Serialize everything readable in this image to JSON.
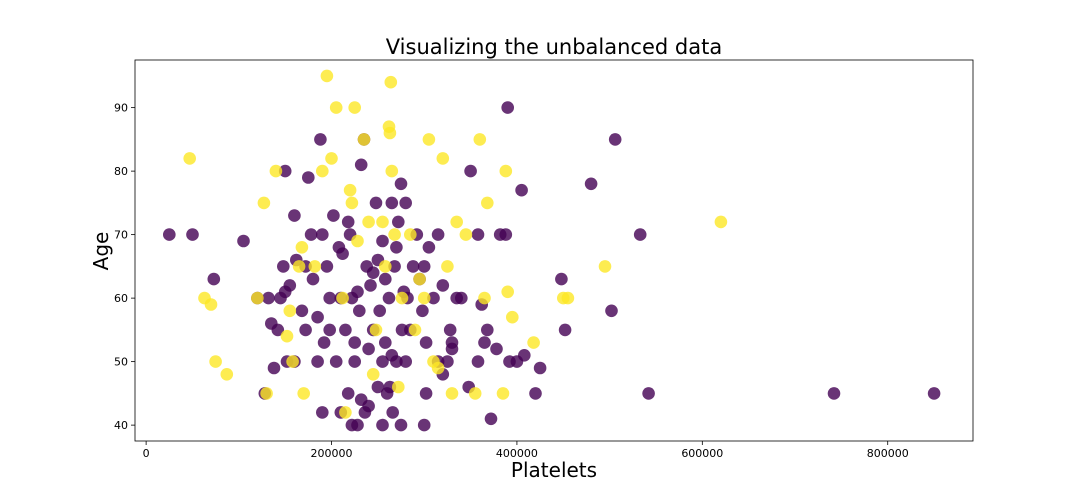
{
  "chart_data": {
    "type": "scatter",
    "title": "Visualizing the unbalanced data",
    "xlabel": "Platelets",
    "ylabel": "Age",
    "xlim": [
      -12000,
      892000
    ],
    "ylim": [
      37.5,
      97.5
    ],
    "xticks": [
      0,
      200000,
      400000,
      600000,
      800000
    ],
    "yticks": [
      40,
      50,
      60,
      70,
      80,
      90
    ],
    "grid": false,
    "legend": "none",
    "colors": {
      "class_0": "#440154",
      "class_1": "#fde725"
    },
    "series": [
      {
        "class": 0,
        "points": [
          [
            25000,
            70
          ],
          [
            50000,
            70
          ],
          [
            73000,
            63
          ],
          [
            105000,
            69
          ],
          [
            120000,
            60
          ],
          [
            128000,
            45
          ],
          [
            132000,
            60
          ],
          [
            135000,
            56
          ],
          [
            138000,
            49
          ],
          [
            142000,
            55
          ],
          [
            148000,
            65
          ],
          [
            150000,
            61
          ],
          [
            150000,
            80
          ],
          [
            152000,
            50
          ],
          [
            155000,
            62
          ],
          [
            160000,
            73
          ],
          [
            162000,
            66
          ],
          [
            168000,
            58
          ],
          [
            172000,
            65
          ],
          [
            175000,
            79
          ],
          [
            178000,
            70
          ],
          [
            180000,
            63
          ],
          [
            185000,
            57
          ],
          [
            188000,
            85
          ],
          [
            190000,
            70
          ],
          [
            192000,
            53
          ],
          [
            195000,
            65
          ],
          [
            198000,
            60
          ],
          [
            202000,
            73
          ],
          [
            208000,
            68
          ],
          [
            210000,
            60
          ],
          [
            212000,
            67
          ],
          [
            215000,
            55
          ],
          [
            218000,
            72
          ],
          [
            220000,
            70
          ],
          [
            222000,
            60
          ],
          [
            225000,
            53
          ],
          [
            228000,
            61
          ],
          [
            232000,
            81
          ],
          [
            235000,
            85
          ],
          [
            238000,
            65
          ],
          [
            242000,
            62
          ],
          [
            245000,
            64
          ],
          [
            248000,
            75
          ],
          [
            250000,
            66
          ],
          [
            252000,
            58
          ],
          [
            255000,
            69
          ],
          [
            258000,
            63
          ],
          [
            262000,
            60
          ],
          [
            265000,
            75
          ],
          [
            268000,
            65
          ],
          [
            270000,
            68
          ],
          [
            272000,
            72
          ],
          [
            275000,
            78
          ],
          [
            278000,
            61
          ],
          [
            280000,
            75
          ],
          [
            282000,
            60
          ],
          [
            285000,
            55
          ],
          [
            288000,
            65
          ],
          [
            292000,
            70
          ],
          [
            295000,
            63
          ],
          [
            298000,
            58
          ],
          [
            300000,
            65
          ],
          [
            302000,
            53
          ],
          [
            305000,
            68
          ],
          [
            310000,
            60
          ],
          [
            315000,
            70
          ],
          [
            320000,
            62
          ],
          [
            325000,
            50
          ],
          [
            328000,
            55
          ],
          [
            330000,
            52
          ],
          [
            335000,
            60
          ],
          [
            348000,
            46
          ],
          [
            350000,
            80
          ],
          [
            358000,
            70
          ],
          [
            362000,
            59
          ],
          [
            365000,
            53
          ],
          [
            368000,
            55
          ],
          [
            372000,
            41
          ],
          [
            378000,
            52
          ],
          [
            382000,
            70
          ],
          [
            388000,
            70
          ],
          [
            390000,
            90
          ],
          [
            392000,
            50
          ],
          [
            400000,
            50
          ],
          [
            405000,
            77
          ],
          [
            408000,
            51
          ],
          [
            420000,
            45
          ],
          [
            425000,
            49
          ],
          [
            448000,
            63
          ],
          [
            452000,
            55
          ],
          [
            480000,
            78
          ],
          [
            502000,
            58
          ],
          [
            506000,
            85
          ],
          [
            533000,
            70
          ],
          [
            542000,
            45
          ],
          [
            742000,
            45
          ],
          [
            850000,
            45
          ],
          [
            190000,
            42
          ],
          [
            210000,
            42
          ],
          [
            218000,
            45
          ],
          [
            222000,
            40
          ],
          [
            228000,
            40
          ],
          [
            232000,
            44
          ],
          [
            236000,
            42
          ],
          [
            240000,
            43
          ],
          [
            255000,
            40
          ],
          [
            260000,
            45
          ],
          [
            263000,
            46
          ],
          [
            266000,
            42
          ],
          [
            275000,
            40
          ],
          [
            300000,
            40
          ],
          [
            302000,
            45
          ],
          [
            315000,
            50
          ],
          [
            320000,
            48
          ],
          [
            330000,
            53
          ],
          [
            340000,
            60
          ],
          [
            358000,
            50
          ],
          [
            255000,
            50
          ],
          [
            258000,
            53
          ],
          [
            265000,
            51
          ],
          [
            270000,
            50
          ],
          [
            276000,
            55
          ],
          [
            280000,
            50
          ],
          [
            250000,
            46
          ],
          [
            245000,
            55
          ],
          [
            240000,
            52
          ],
          [
            230000,
            58
          ],
          [
            225000,
            50
          ],
          [
            205000,
            50
          ],
          [
            198000,
            55
          ],
          [
            185000,
            50
          ],
          [
            172000,
            55
          ],
          [
            160000,
            50
          ],
          [
            145000,
            60
          ]
        ]
      },
      {
        "class": 1,
        "points": [
          [
            47000,
            82
          ],
          [
            63000,
            60
          ],
          [
            70000,
            59
          ],
          [
            75000,
            50
          ],
          [
            87000,
            48
          ],
          [
            120000,
            60
          ],
          [
            127000,
            75
          ],
          [
            130000,
            45
          ],
          [
            140000,
            80
          ],
          [
            152000,
            54
          ],
          [
            155000,
            58
          ],
          [
            158000,
            50
          ],
          [
            165000,
            65
          ],
          [
            168000,
            68
          ],
          [
            170000,
            45
          ],
          [
            182000,
            65
          ],
          [
            190000,
            80
          ],
          [
            195000,
            95
          ],
          [
            200000,
            82
          ],
          [
            205000,
            90
          ],
          [
            212000,
            60
          ],
          [
            215000,
            42
          ],
          [
            220000,
            77
          ],
          [
            222000,
            75
          ],
          [
            225000,
            90
          ],
          [
            228000,
            69
          ],
          [
            235000,
            85
          ],
          [
            240000,
            72
          ],
          [
            245000,
            48
          ],
          [
            248000,
            55
          ],
          [
            255000,
            72
          ],
          [
            258000,
            65
          ],
          [
            262000,
            87
          ],
          [
            263000,
            86
          ],
          [
            264000,
            94
          ],
          [
            265000,
            80
          ],
          [
            268000,
            70
          ],
          [
            272000,
            46
          ],
          [
            276000,
            60
          ],
          [
            285000,
            70
          ],
          [
            290000,
            55
          ],
          [
            295000,
            63
          ],
          [
            300000,
            60
          ],
          [
            305000,
            85
          ],
          [
            310000,
            50
          ],
          [
            315000,
            49
          ],
          [
            320000,
            82
          ],
          [
            325000,
            65
          ],
          [
            330000,
            45
          ],
          [
            335000,
            72
          ],
          [
            345000,
            70
          ],
          [
            355000,
            45
          ],
          [
            360000,
            85
          ],
          [
            365000,
            60
          ],
          [
            368000,
            75
          ],
          [
            385000,
            45
          ],
          [
            388000,
            80
          ],
          [
            390000,
            61
          ],
          [
            395000,
            57
          ],
          [
            418000,
            53
          ],
          [
            450000,
            60
          ],
          [
            455000,
            60
          ],
          [
            495000,
            65
          ],
          [
            620000,
            72
          ]
        ]
      }
    ]
  }
}
